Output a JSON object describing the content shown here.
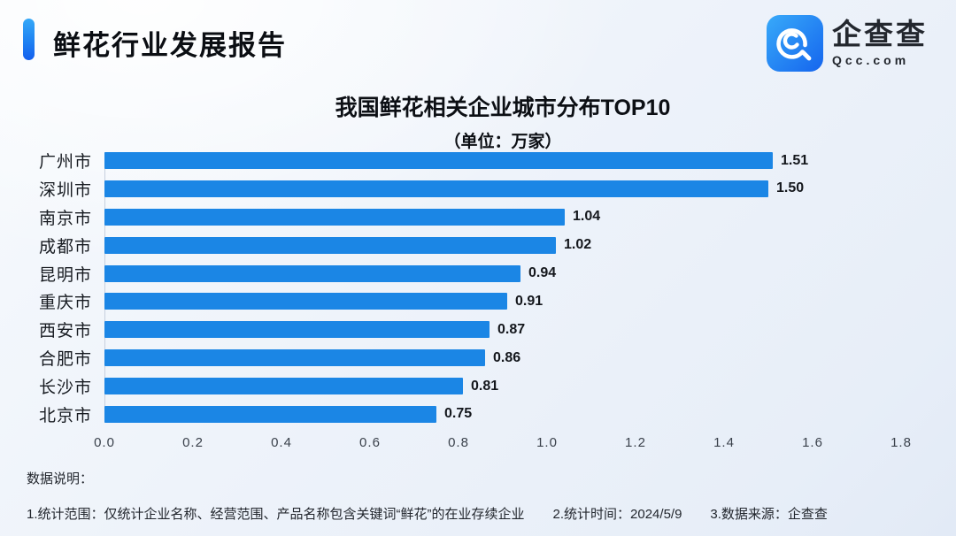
{
  "header": {
    "title": "鲜花行业发展报告"
  },
  "logo": {
    "name": "企查查",
    "domain": "Qcc.com"
  },
  "chart_data": {
    "type": "bar",
    "orientation": "horizontal",
    "title": "我国鲜花相关企业城市分布TOP10",
    "subtitle": "（单位：万家）",
    "unit": "万家",
    "categories": [
      "广州市",
      "深圳市",
      "南京市",
      "成都市",
      "昆明市",
      "重庆市",
      "西安市",
      "合肥市",
      "长沙市",
      "北京市"
    ],
    "values": [
      1.51,
      1.5,
      1.04,
      1.02,
      0.94,
      0.91,
      0.87,
      0.86,
      0.81,
      0.75
    ],
    "value_labels": [
      "1.51",
      "1.50",
      "1.04",
      "1.02",
      "0.94",
      "0.91",
      "0.87",
      "0.86",
      "0.81",
      "0.75"
    ],
    "xlim": [
      0,
      1.8
    ],
    "x_ticks": [
      "0.0",
      "0.2",
      "0.4",
      "0.6",
      "0.8",
      "1.0",
      "1.2",
      "1.4",
      "1.6",
      "1.8"
    ],
    "grid": false,
    "legend": false,
    "bar_color": "#1b86e5"
  },
  "footer": {
    "heading": "数据说明：",
    "notes": [
      "1.统计范围：仅统计企业名称、经营范围、产品名称包含关键词“鲜花”的在业存续企业",
      "2.统计时间：2024/5/9",
      "3.数据来源：企查查"
    ]
  },
  "colors": {
    "accent_blue": "#1b86e5",
    "logo_gradient_start": "#38aaf9",
    "logo_gradient_end": "#1565ee",
    "background_light": "#f7fafd",
    "background_dark": "#e2eaf6"
  }
}
